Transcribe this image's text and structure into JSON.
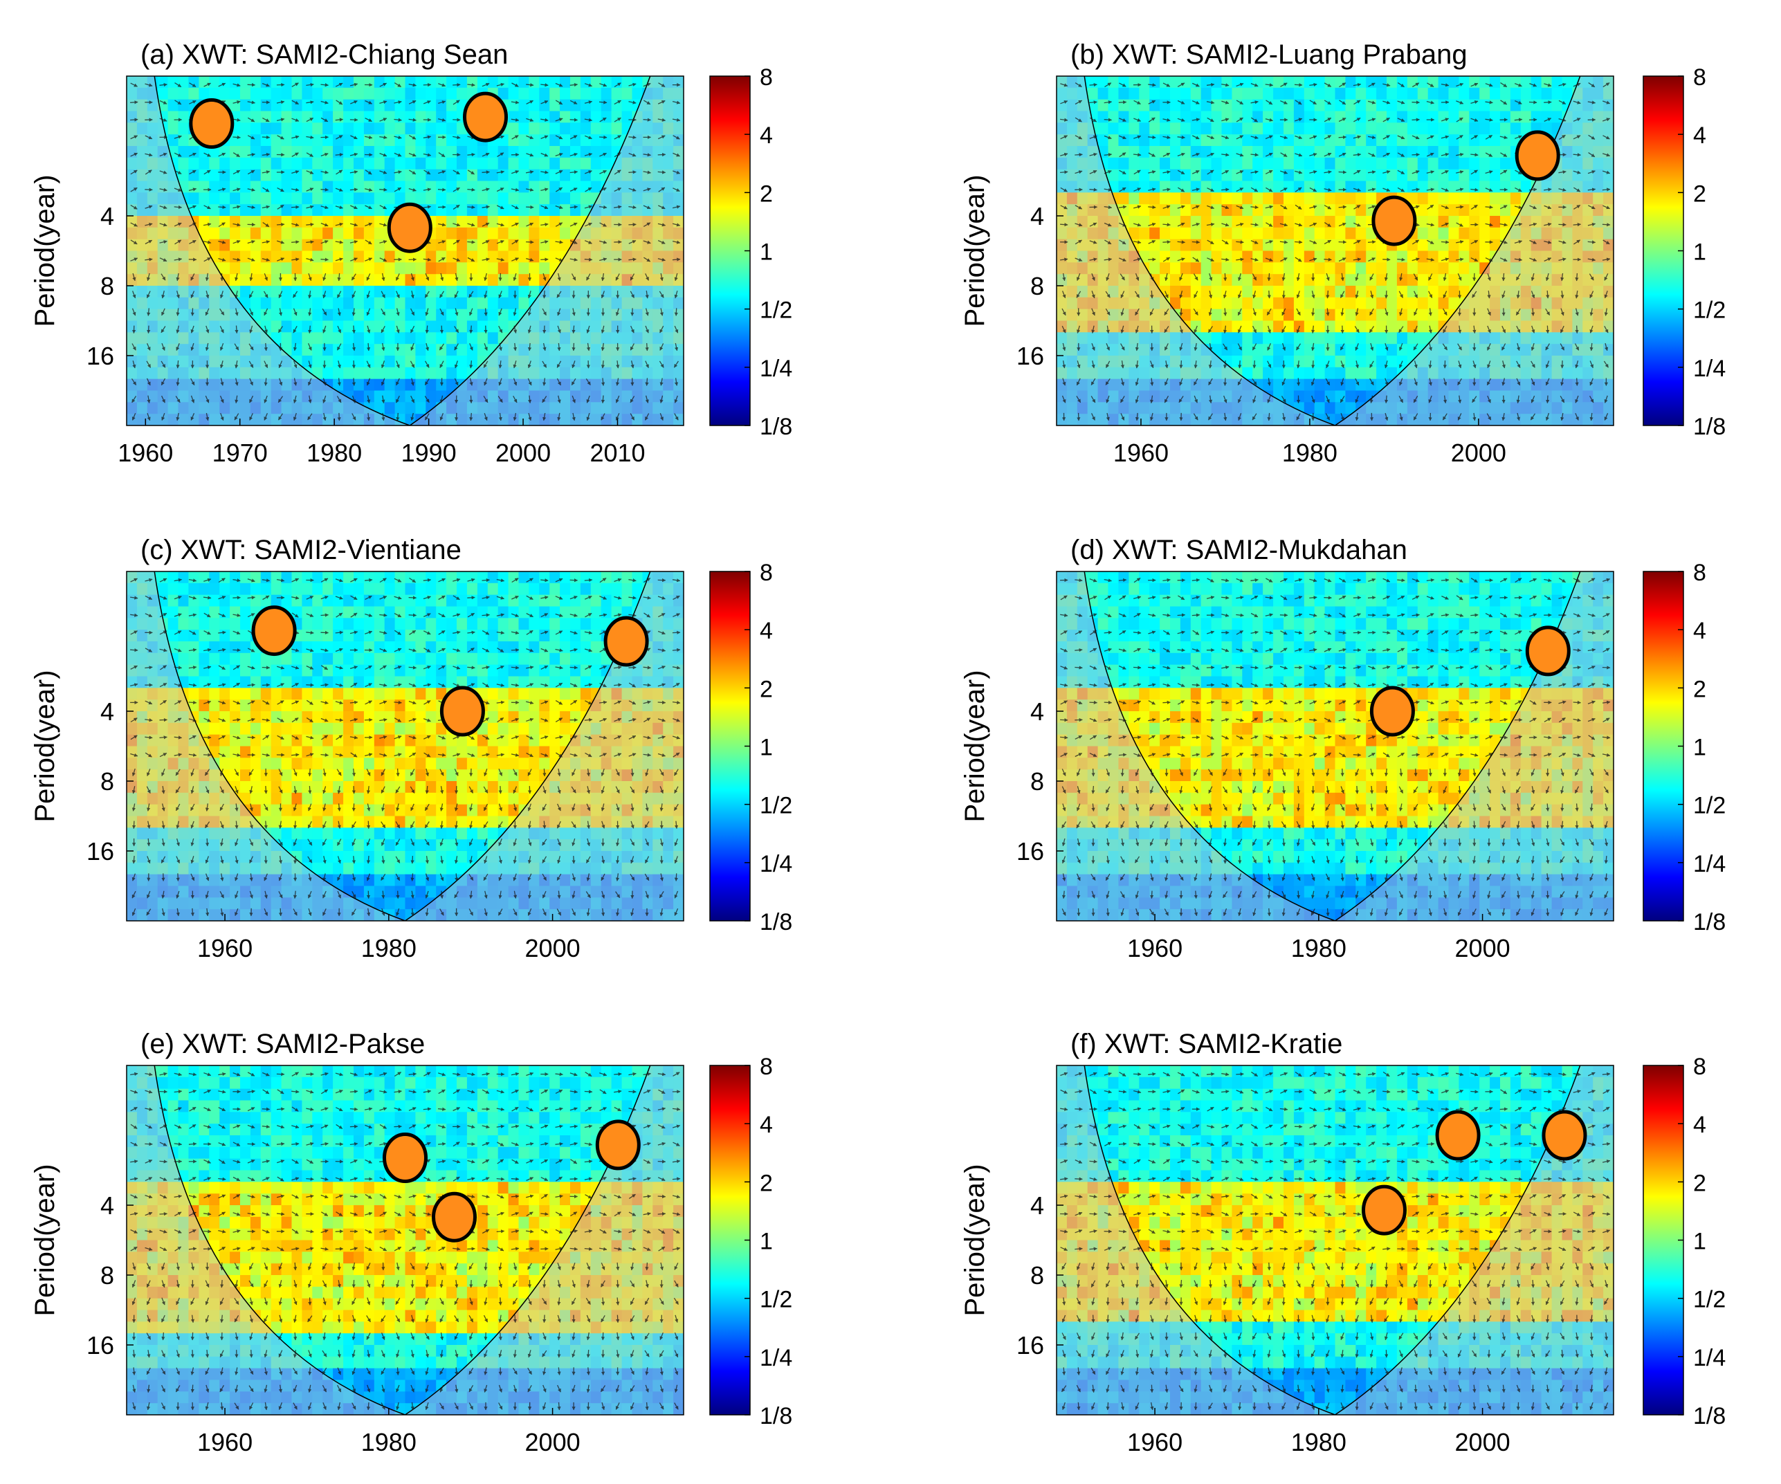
{
  "figure": {
    "ylabel": "Period(year)"
  },
  "colorbar": {
    "tick_labels": [
      "8",
      "4",
      "2",
      "1",
      "1/2",
      "1/4",
      "1/8"
    ],
    "tick_values": [
      8,
      4,
      2,
      1,
      0.5,
      0.25,
      0.125
    ],
    "colors": [
      "#00007f",
      "#0000ff",
      "#007fff",
      "#00ffff",
      "#7fff7f",
      "#ffff00",
      "#ff7f00",
      "#ff0000",
      "#7f0000"
    ]
  },
  "chart_data": [
    {
      "type": "heatmap",
      "panel": "(a)",
      "title": "(a) XWT: SAMI2-Chiang Sean",
      "xlabel": "",
      "ylabel": "Period(year)",
      "xlim": [
        1958,
        2017
      ],
      "xticks": [
        1960,
        1970,
        1980,
        1990,
        2000,
        2010
      ],
      "ylim_log2": [
        1,
        32
      ],
      "yticks": [
        4,
        8,
        16
      ],
      "coi_bottom_year": 1988,
      "significant_regions": [
        {
          "year": 1967,
          "period": 1.6
        },
        {
          "year": 1996,
          "period": 1.5
        },
        {
          "year": 1988,
          "period": 4.5
        }
      ],
      "high_power_band": {
        "period_from": 4,
        "period_to": 8
      }
    },
    {
      "type": "heatmap",
      "panel": "(b)",
      "title": "(b) XWT: SAMI2-Luang Prabang",
      "xlabel": "",
      "ylabel": "Period(year)",
      "xlim": [
        1950,
        2016
      ],
      "xticks": [
        1960,
        1980,
        2000
      ],
      "ylim_log2": [
        1,
        32
      ],
      "yticks": [
        4,
        8,
        16
      ],
      "coi_bottom_year": 1983,
      "significant_regions": [
        {
          "year": 1990,
          "period": 4.2
        },
        {
          "year": 2007,
          "period": 2.2
        }
      ],
      "high_power_band": {
        "period_from": 3,
        "period_to": 12
      }
    },
    {
      "type": "heatmap",
      "panel": "(c)",
      "title": "(c) XWT: SAMI2-Vientiane",
      "xlabel": "",
      "ylabel": "Period(year)",
      "xlim": [
        1948,
        2016
      ],
      "xticks": [
        1960,
        1980,
        2000
      ],
      "ylim_log2": [
        1,
        32
      ],
      "yticks": [
        4,
        8,
        16
      ],
      "coi_bottom_year": 1982,
      "significant_regions": [
        {
          "year": 1966,
          "period": 1.8
        },
        {
          "year": 1989,
          "period": 4.0
        },
        {
          "year": 2009,
          "period": 2.0
        }
      ],
      "high_power_band": {
        "period_from": 3,
        "period_to": 12
      }
    },
    {
      "type": "heatmap",
      "panel": "(d)",
      "title": "(d) XWT: SAMI2-Mukdahan",
      "xlabel": "",
      "ylabel": "Period(year)",
      "xlim": [
        1948,
        2016
      ],
      "xticks": [
        1960,
        1980,
        2000
      ],
      "ylim_log2": [
        1,
        32
      ],
      "yticks": [
        4,
        8,
        16
      ],
      "coi_bottom_year": 1982,
      "significant_regions": [
        {
          "year": 1989,
          "period": 4.0
        },
        {
          "year": 2008,
          "period": 2.2
        }
      ],
      "high_power_band": {
        "period_from": 3,
        "period_to": 12
      }
    },
    {
      "type": "heatmap",
      "panel": "(e)",
      "title": "(e) XWT: SAMI2-Pakse",
      "xlabel": "",
      "ylabel": "Period(year)",
      "xlim": [
        1948,
        2016
      ],
      "xticks": [
        1960,
        1980,
        2000
      ],
      "ylim_log2": [
        1,
        32
      ],
      "yticks": [
        4,
        8,
        16
      ],
      "coi_bottom_year": 1982,
      "significant_regions": [
        {
          "year": 1982,
          "period": 2.5
        },
        {
          "year": 1988,
          "period": 4.5
        },
        {
          "year": 2008,
          "period": 2.2
        }
      ],
      "high_power_band": {
        "period_from": 3,
        "period_to": 14
      }
    },
    {
      "type": "heatmap",
      "panel": "(f)",
      "title": "(f) XWT: SAMI2-Kratie",
      "xlabel": "",
      "ylabel": "Period(year)",
      "xlim": [
        1948,
        2016
      ],
      "xticks": [
        1960,
        1980,
        2000
      ],
      "ylim_log2": [
        1,
        32
      ],
      "yticks": [
        4,
        8,
        16
      ],
      "coi_bottom_year": 1982,
      "significant_regions": [
        {
          "year": 1997,
          "period": 2.0
        },
        {
          "year": 1988,
          "period": 4.2
        },
        {
          "year": 2010,
          "period": 2.0
        }
      ],
      "high_power_band": {
        "period_from": 3,
        "period_to": 12
      }
    }
  ]
}
